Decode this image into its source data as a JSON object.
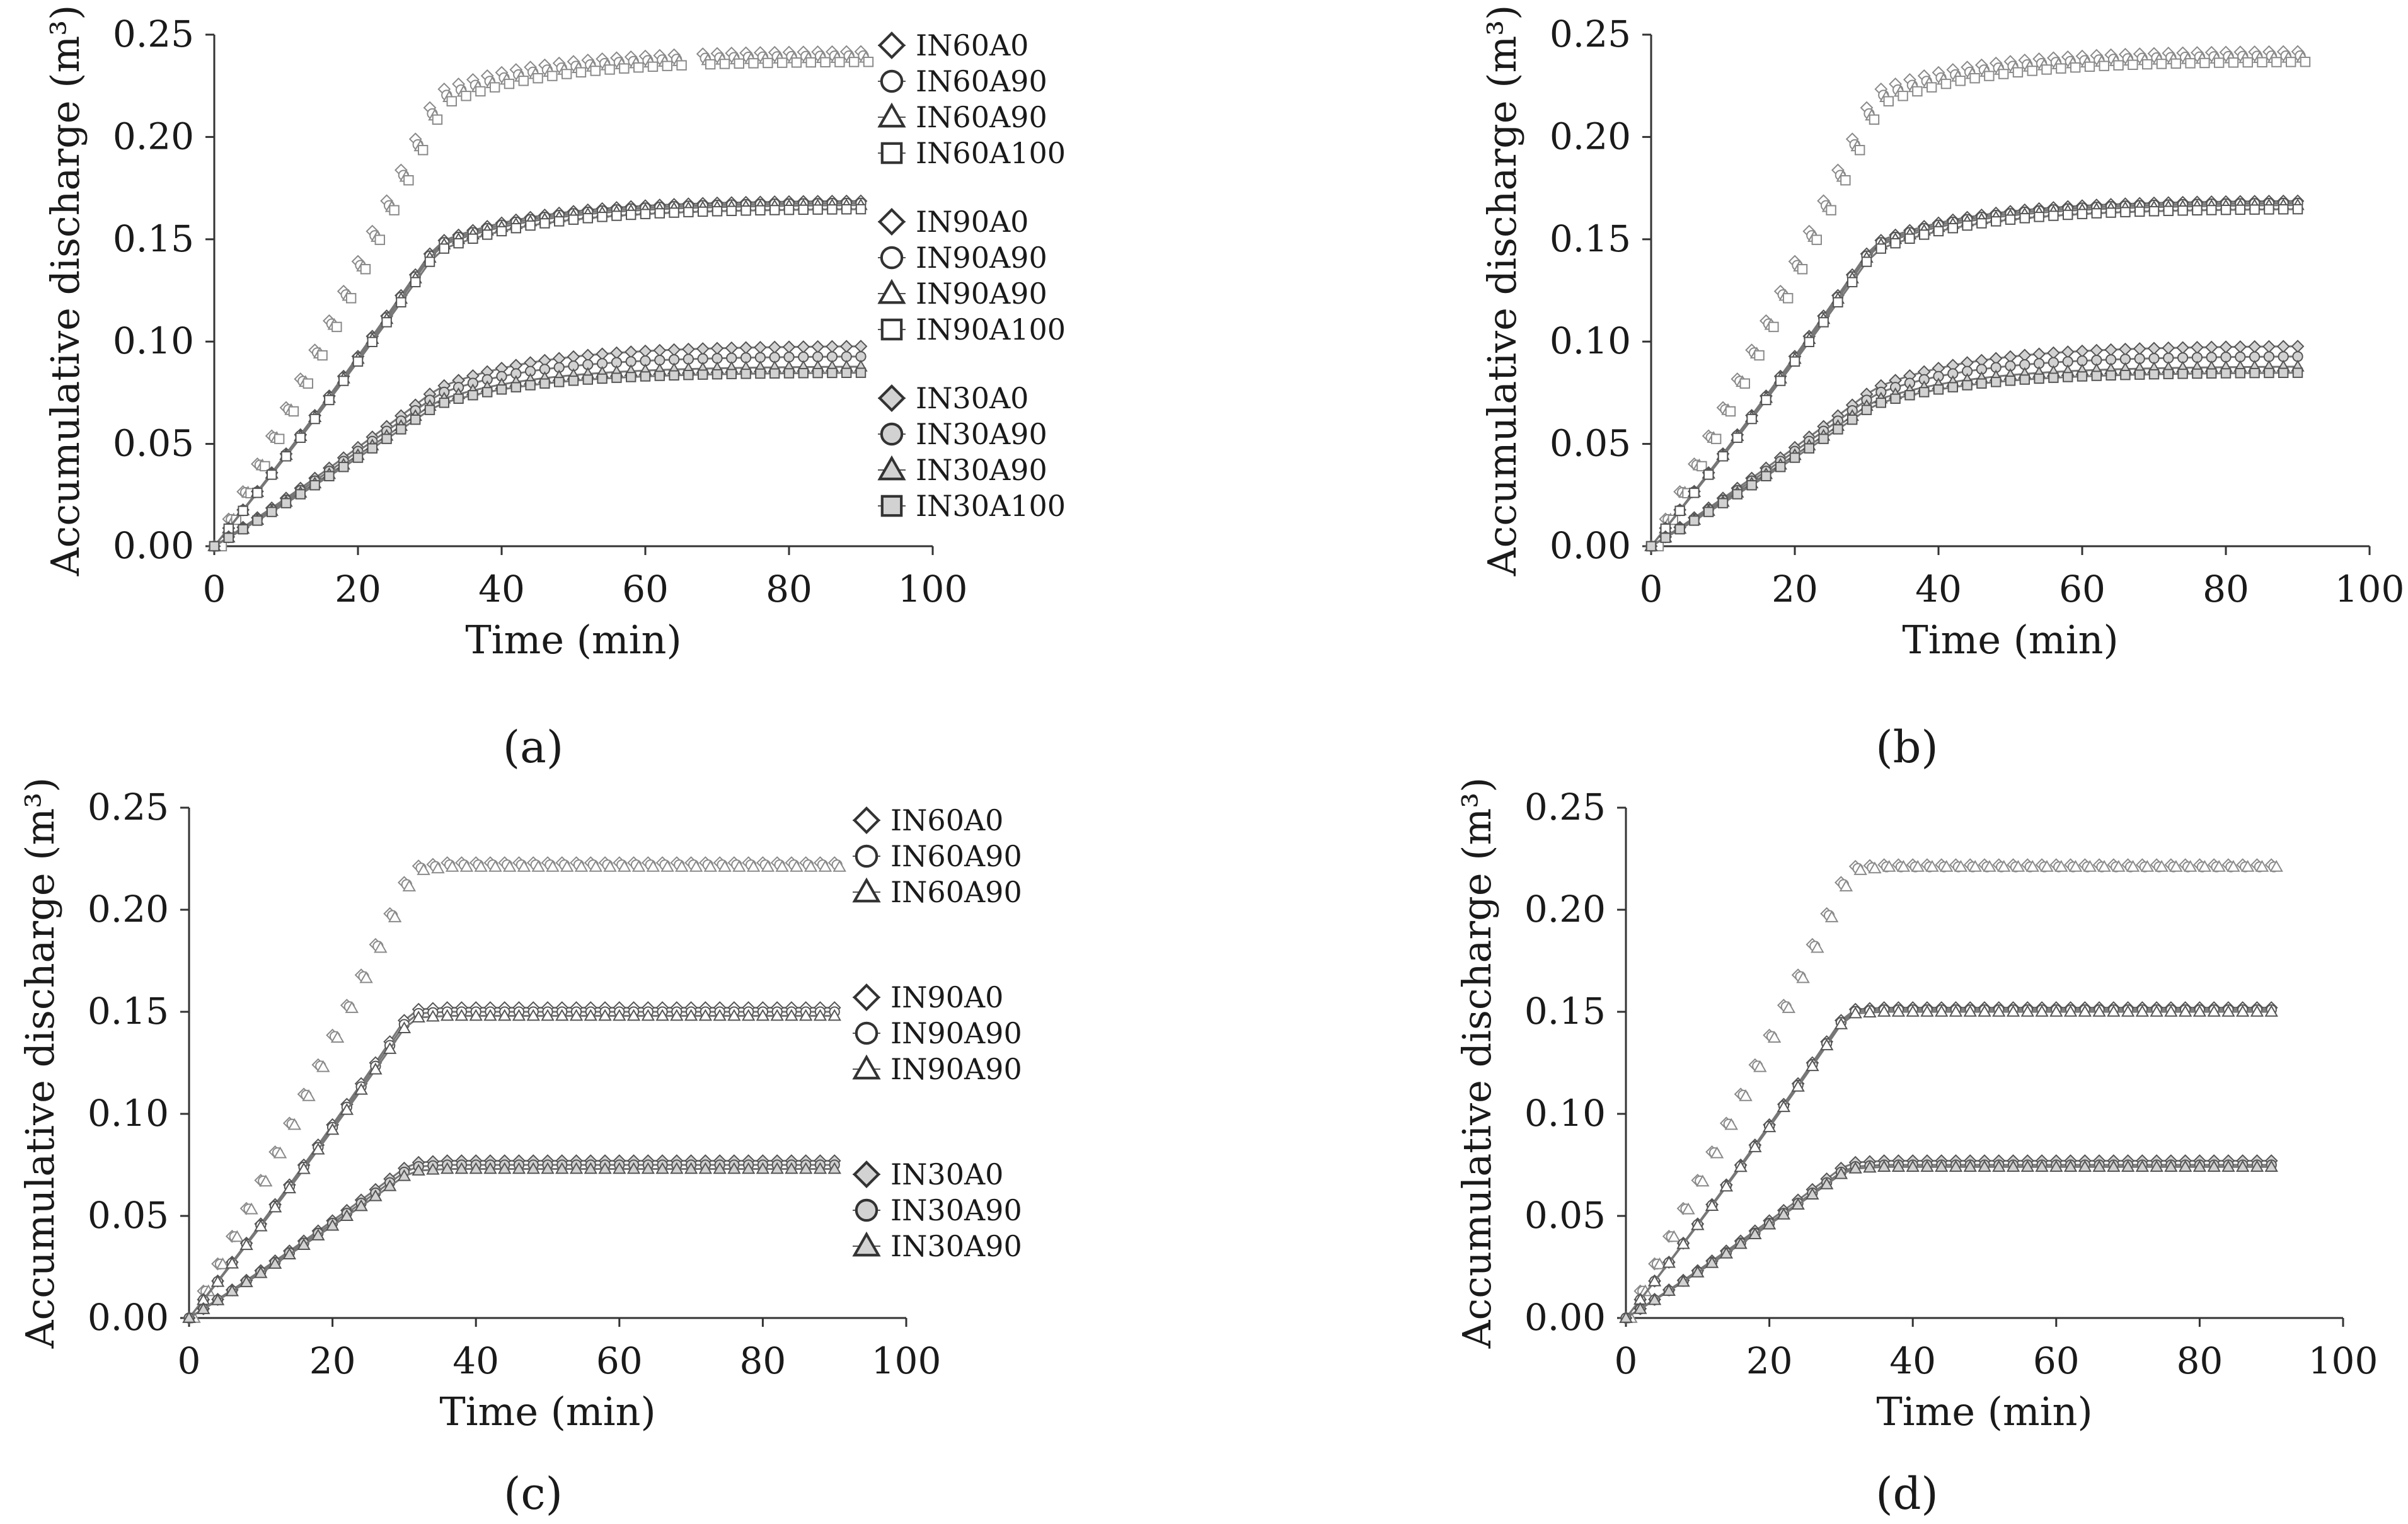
{
  "figure": {
    "panels": [
      {
        "caption": "(a)",
        "chart_data": {
          "type": "line",
          "title": "",
          "xlabel": "Time (min)",
          "ylabel": "Accumulative discharge (m³)",
          "xlim": [
            0,
            100
          ],
          "ylim": [
            0,
            0.25
          ],
          "xticks": [
            "0",
            "20",
            "40",
            "60",
            "80",
            "100"
          ],
          "yticks": [
            "0.00",
            "0.05",
            "0.10",
            "0.15",
            "0.20",
            "0.25"
          ],
          "legend_position": "right",
          "legend_groups": [
            [
              "IN60A0",
              "IN60A90",
              "IN60A90",
              "IN60A100"
            ],
            [
              "IN90A0",
              "IN90A90",
              "IN90A90",
              "IN90A100"
            ],
            [
              "IN30A0",
              "IN30A90",
              "IN30A90",
              "IN30A100"
            ]
          ],
          "series": [
            {
              "name": "IN60A0",
              "marker": "diamond",
              "filled": false,
              "line": false,
              "end": 0.242,
              "breakthrough": 0.222
            },
            {
              "name": "IN60A90",
              "marker": "circle",
              "filled": false,
              "line": false,
              "end": 0.24,
              "breakthrough": 0.219
            },
            {
              "name": "IN60A90",
              "marker": "triangle",
              "filled": false,
              "line": false,
              "end": 0.239,
              "breakthrough": 0.218
            },
            {
              "name": "IN60A100",
              "marker": "square",
              "filled": false,
              "line": false,
              "end": 0.237,
              "breakthrough": 0.216
            },
            {
              "name": "IN90A0",
              "marker": "diamond",
              "filled": false,
              "line": true,
              "end": 0.169,
              "breakthrough": 0.148
            },
            {
              "name": "IN90A90",
              "marker": "circle",
              "filled": false,
              "line": true,
              "end": 0.168,
              "breakthrough": 0.147
            },
            {
              "name": "IN90A90",
              "marker": "triangle",
              "filled": false,
              "line": true,
              "end": 0.167,
              "breakthrough": 0.146
            },
            {
              "name": "IN90A100",
              "marker": "square",
              "filled": false,
              "line": true,
              "end": 0.165,
              "breakthrough": 0.144
            },
            {
              "name": "IN30A0",
              "marker": "diamond",
              "filled": true,
              "line": true,
              "end": 0.098,
              "breakthrough": 0.077
            },
            {
              "name": "IN30A90",
              "marker": "circle",
              "filled": true,
              "line": true,
              "end": 0.093,
              "breakthrough": 0.074
            },
            {
              "name": "IN30A90",
              "marker": "triangle",
              "filled": true,
              "line": true,
              "end": 0.088,
              "breakthrough": 0.071
            },
            {
              "name": "IN30A100",
              "marker": "square",
              "filled": true,
              "line": true,
              "end": 0.085,
              "breakthrough": 0.069
            }
          ]
        }
      },
      {
        "caption": "(b)",
        "chart_data": {
          "type": "line",
          "title": "",
          "xlabel": "Time (min)",
          "ylabel": "Accumulative discharge (m³)",
          "xlim": [
            0,
            100
          ],
          "ylim": [
            0,
            0.25
          ],
          "xticks": [
            "0",
            "20",
            "40",
            "60",
            "80",
            "100"
          ],
          "yticks": [
            "0.00",
            "0.05",
            "0.10",
            "0.15",
            "0.20",
            "0.25"
          ],
          "legend_position": "none",
          "legend_groups": [],
          "series": [
            {
              "name": "IN60A0",
              "marker": "diamond",
              "filled": false,
              "line": false,
              "end": 0.242,
              "breakthrough": 0.222
            },
            {
              "name": "IN60A90",
              "marker": "circle",
              "filled": false,
              "line": false,
              "end": 0.24,
              "breakthrough": 0.219
            },
            {
              "name": "IN60A90",
              "marker": "triangle",
              "filled": false,
              "line": false,
              "end": 0.239,
              "breakthrough": 0.218
            },
            {
              "name": "IN60A100",
              "marker": "square",
              "filled": false,
              "line": false,
              "end": 0.237,
              "breakthrough": 0.216
            },
            {
              "name": "IN90A0",
              "marker": "diamond",
              "filled": false,
              "line": true,
              "end": 0.169,
              "breakthrough": 0.148
            },
            {
              "name": "IN90A90",
              "marker": "circle",
              "filled": false,
              "line": true,
              "end": 0.168,
              "breakthrough": 0.147
            },
            {
              "name": "IN90A90",
              "marker": "triangle",
              "filled": false,
              "line": true,
              "end": 0.167,
              "breakthrough": 0.146
            },
            {
              "name": "IN90A100",
              "marker": "square",
              "filled": false,
              "line": true,
              "end": 0.165,
              "breakthrough": 0.144
            },
            {
              "name": "IN30A0",
              "marker": "diamond",
              "filled": true,
              "line": true,
              "end": 0.098,
              "breakthrough": 0.077
            },
            {
              "name": "IN30A90",
              "marker": "circle",
              "filled": true,
              "line": true,
              "end": 0.093,
              "breakthrough": 0.074
            },
            {
              "name": "IN30A90",
              "marker": "triangle",
              "filled": true,
              "line": true,
              "end": 0.088,
              "breakthrough": 0.071
            },
            {
              "name": "IN30A100",
              "marker": "square",
              "filled": true,
              "line": true,
              "end": 0.085,
              "breakthrough": 0.069
            }
          ]
        }
      },
      {
        "caption": "(c)",
        "chart_data": {
          "type": "line",
          "title": "",
          "xlabel": "Time (min)",
          "ylabel": "Accumulative discharge (m³)",
          "xlim": [
            0,
            100
          ],
          "ylim": [
            0,
            0.25
          ],
          "xticks": [
            "0",
            "20",
            "40",
            "60",
            "80",
            "100"
          ],
          "yticks": [
            "0.00",
            "0.05",
            "0.10",
            "0.15",
            "0.20",
            "0.25"
          ],
          "legend_position": "right",
          "legend_groups": [
            [
              "IN60A0",
              "IN60A90",
              "IN60A90"
            ],
            [
              "IN90A0",
              "IN90A90",
              "IN90A90"
            ],
            [
              "IN30A0",
              "IN30A90",
              "IN30A90"
            ]
          ],
          "series": [
            {
              "name": "IN60A0",
              "marker": "diamond",
              "filled": false,
              "line": false,
              "end": 0.223,
              "breakthrough": 0.221
            },
            {
              "name": "IN60A90",
              "marker": "circle",
              "filled": false,
              "line": false,
              "end": 0.222,
              "breakthrough": 0.22
            },
            {
              "name": "IN60A90",
              "marker": "triangle",
              "filled": false,
              "line": false,
              "end": 0.221,
              "breakthrough": 0.219
            },
            {
              "name": "IN90A0",
              "marker": "diamond",
              "filled": false,
              "line": true,
              "end": 0.152,
              "breakthrough": 0.151
            },
            {
              "name": "IN90A90",
              "marker": "circle",
              "filled": false,
              "line": true,
              "end": 0.15,
              "breakthrough": 0.149
            },
            {
              "name": "IN90A90",
              "marker": "triangle",
              "filled": false,
              "line": true,
              "end": 0.148,
              "breakthrough": 0.147
            },
            {
              "name": "IN30A0",
              "marker": "diamond",
              "filled": true,
              "line": true,
              "end": 0.077,
              "breakthrough": 0.076
            },
            {
              "name": "IN30A90",
              "marker": "circle",
              "filled": true,
              "line": true,
              "end": 0.075,
              "breakthrough": 0.074
            },
            {
              "name": "IN30A90",
              "marker": "triangle",
              "filled": true,
              "line": true,
              "end": 0.073,
              "breakthrough": 0.072
            }
          ]
        }
      },
      {
        "caption": "(d)",
        "chart_data": {
          "type": "line",
          "title": "",
          "xlabel": "Time (min)",
          "ylabel": "Accumulative discharge (m³)",
          "xlim": [
            0,
            100
          ],
          "ylim": [
            0,
            0.25
          ],
          "xticks": [
            "0",
            "20",
            "40",
            "60",
            "80",
            "100"
          ],
          "yticks": [
            "0.00",
            "0.05",
            "0.10",
            "0.15",
            "0.20",
            "0.25"
          ],
          "legend_position": "none",
          "legend_groups": [],
          "series": [
            {
              "name": "IN60A0",
              "marker": "diamond",
              "filled": false,
              "line": false,
              "end": 0.222,
              "breakthrough": 0.221
            },
            {
              "name": "IN60A90",
              "marker": "circle",
              "filled": false,
              "line": false,
              "end": 0.221,
              "breakthrough": 0.22
            },
            {
              "name": "IN60A90",
              "marker": "triangle",
              "filled": false,
              "line": false,
              "end": 0.221,
              "breakthrough": 0.219
            },
            {
              "name": "IN90A0",
              "marker": "diamond",
              "filled": false,
              "line": true,
              "end": 0.152,
              "breakthrough": 0.151
            },
            {
              "name": "IN90A90",
              "marker": "circle",
              "filled": false,
              "line": true,
              "end": 0.151,
              "breakthrough": 0.15
            },
            {
              "name": "IN90A90",
              "marker": "triangle",
              "filled": false,
              "line": true,
              "end": 0.15,
              "breakthrough": 0.149
            },
            {
              "name": "IN30A0",
              "marker": "diamond",
              "filled": true,
              "line": true,
              "end": 0.077,
              "breakthrough": 0.076
            },
            {
              "name": "IN30A90",
              "marker": "circle",
              "filled": true,
              "line": true,
              "end": 0.075,
              "breakthrough": 0.074
            },
            {
              "name": "IN30A90",
              "marker": "triangle",
              "filled": true,
              "line": true,
              "end": 0.074,
              "breakthrough": 0.073
            }
          ]
        }
      }
    ]
  },
  "chart_data": [
    {
      "panel": "(a)",
      "type": "line",
      "xlabel": "Time (min)",
      "ylabel": "Accumulative discharge (m³)",
      "xlim": [
        0,
        100
      ],
      "ylim": [
        0,
        0.25
      ],
      "series_end_values": {
        "IN60": [
          0.242,
          0.24,
          0.239,
          0.237
        ],
        "IN90": [
          0.169,
          0.168,
          0.167,
          0.165
        ],
        "IN30": [
          0.098,
          0.093,
          0.088,
          0.085
        ]
      }
    },
    {
      "panel": "(b)",
      "type": "line",
      "xlabel": "Time (min)",
      "ylabel": "Accumulative discharge (m³)",
      "xlim": [
        0,
        100
      ],
      "ylim": [
        0,
        0.25
      ],
      "series_end_values": {
        "IN60": [
          0.242,
          0.24,
          0.239,
          0.237
        ],
        "IN90": [
          0.169,
          0.168,
          0.167,
          0.165
        ],
        "IN30": [
          0.098,
          0.093,
          0.088,
          0.085
        ]
      }
    },
    {
      "panel": "(c)",
      "type": "line",
      "xlabel": "Time (min)",
      "ylabel": "Accumulative discharge (m³)",
      "xlim": [
        0,
        100
      ],
      "ylim": [
        0,
        0.25
      ],
      "series_end_values": {
        "IN60": [
          0.223,
          0.222,
          0.221
        ],
        "IN90": [
          0.152,
          0.15,
          0.148
        ],
        "IN30": [
          0.077,
          0.075,
          0.073
        ]
      }
    },
    {
      "panel": "(d)",
      "type": "line",
      "xlabel": "Time (min)",
      "ylabel": "Accumulative discharge (m³)",
      "xlim": [
        0,
        100
      ],
      "ylim": [
        0,
        0.25
      ],
      "series_end_values": {
        "IN60": [
          0.222,
          0.221,
          0.221
        ],
        "IN90": [
          0.152,
          0.151,
          0.15
        ],
        "IN30": [
          0.077,
          0.075,
          0.074
        ]
      }
    }
  ]
}
